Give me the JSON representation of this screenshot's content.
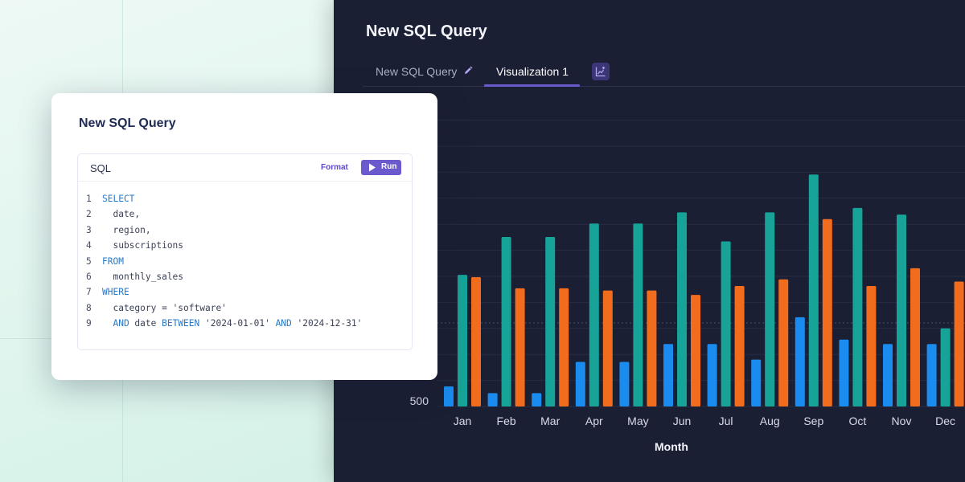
{
  "dark_panel": {
    "title": "New SQL Query",
    "tabs": [
      {
        "label": "New SQL Query",
        "icon": "pencil-icon"
      },
      {
        "label": "Visualization 1",
        "active": true
      }
    ],
    "add_tab_icon": "add-chart-icon"
  },
  "sql_card": {
    "title": "New SQL Query",
    "editor_label": "SQL",
    "format_label": "Format",
    "run_label": "Run",
    "lines": [
      {
        "n": "1",
        "tokens": [
          {
            "t": "SELECT",
            "k": "kw"
          }
        ]
      },
      {
        "n": "2",
        "tokens": [
          {
            "t": "  date,",
            "k": "id"
          }
        ]
      },
      {
        "n": "3",
        "tokens": [
          {
            "t": "  region,",
            "k": "id"
          }
        ]
      },
      {
        "n": "4",
        "tokens": [
          {
            "t": "  subscriptions",
            "k": "id"
          }
        ]
      },
      {
        "n": "5",
        "tokens": [
          {
            "t": "FROM",
            "k": "kw"
          }
        ]
      },
      {
        "n": "6",
        "tokens": [
          {
            "t": "  monthly_sales",
            "k": "id"
          }
        ]
      },
      {
        "n": "7",
        "tokens": [
          {
            "t": "WHERE",
            "k": "kw"
          }
        ]
      },
      {
        "n": "8",
        "tokens": [
          {
            "t": "  category = ",
            "k": "id"
          },
          {
            "t": "'software'",
            "k": "str"
          }
        ]
      },
      {
        "n": "9",
        "tokens": [
          {
            "t": "  AND",
            "k": "kw"
          },
          {
            "t": " date ",
            "k": "id"
          },
          {
            "t": "BETWEEN",
            "k": "kw"
          },
          {
            "t": " '2024-01-01' ",
            "k": "str"
          },
          {
            "t": "AND",
            "k": "kw"
          },
          {
            "t": " '2024-12-31'",
            "k": "str"
          }
        ]
      }
    ]
  },
  "chart_data": {
    "type": "bar",
    "xlabel": "Month",
    "ylabel": "",
    "y_tick_visible": "500",
    "categories": [
      "Jan",
      "Feb",
      "Mar",
      "Apr",
      "May",
      "Jun",
      "Jul",
      "Aug",
      "Sep",
      "Oct",
      "Nov",
      "Dec"
    ],
    "series": [
      {
        "color": "#1a8cf0",
        "values": [
          590,
          560,
          560,
          700,
          700,
          780,
          780,
          710,
          900,
          800,
          780,
          780
        ]
      },
      {
        "color": "#17a398",
        "values": [
          1090,
          1260,
          1260,
          1320,
          1320,
          1370,
          1240,
          1370,
          1540,
          1390,
          1360,
          850
        ]
      },
      {
        "color": "#f26c1e",
        "values": [
          1080,
          1030,
          1030,
          1020,
          1020,
          1000,
          1040,
          1070,
          1340,
          1040,
          1120,
          1060
        ]
      }
    ],
    "ylim": [
      500,
      1800
    ],
    "grid": true
  },
  "colors": {
    "panel_bg": "#1b1f33",
    "accent": "#6a5acd"
  }
}
